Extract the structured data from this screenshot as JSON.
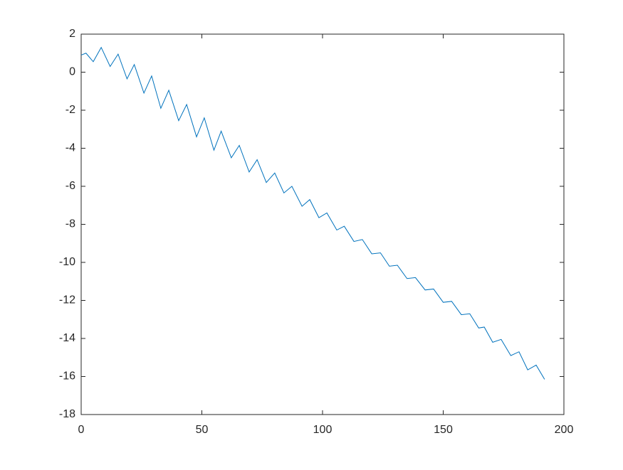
{
  "chart_data": {
    "type": "line",
    "x": [
      0,
      2,
      5,
      8.3,
      12,
      15.3,
      19,
      22,
      26,
      29.2,
      33,
      36.3,
      40.4,
      43.7,
      47.8,
      51,
      55,
      58,
      62.2,
      65.5,
      69.6,
      72.9,
      76.7,
      80.2,
      84,
      87.3,
      91.5,
      94.7,
      98.5,
      101.8,
      105.9,
      109,
      113,
      116.5,
      120.4,
      124,
      127.7,
      131,
      135,
      138.5,
      142.5,
      146,
      150,
      153.5,
      157.5,
      161,
      164.7,
      167,
      170.5,
      174,
      178,
      181.4,
      185,
      188.5,
      192
    ],
    "series": [
      {
        "color": "#0072bd",
        "values": [
          0.9,
          1.0,
          0.55,
          1.3,
          0.3,
          0.95,
          -0.35,
          0.4,
          -1.1,
          -0.2,
          -1.9,
          -0.95,
          -2.55,
          -1.7,
          -3.4,
          -2.4,
          -4.1,
          -3.1,
          -4.5,
          -3.85,
          -5.25,
          -4.6,
          -5.8,
          -5.3,
          -6.35,
          -6.0,
          -7.05,
          -6.7,
          -7.65,
          -7.4,
          -8.3,
          -8.1,
          -8.9,
          -8.8,
          -9.55,
          -9.5,
          -10.2,
          -10.15,
          -10.85,
          -10.8,
          -11.45,
          -11.4,
          -12.1,
          -12.05,
          -12.75,
          -12.7,
          -13.45,
          -13.4,
          -14.2,
          -14.05,
          -14.9,
          -14.7,
          -15.65,
          -15.4,
          -16.15
        ]
      }
    ],
    "xlim": [
      0,
      200
    ],
    "xticks": [
      0,
      50,
      100,
      150,
      200
    ],
    "ylim": [
      -18,
      2
    ],
    "yticks": [
      -18,
      -16,
      -14,
      -12,
      -10,
      -8,
      -6,
      -4,
      -2,
      0,
      2
    ]
  }
}
